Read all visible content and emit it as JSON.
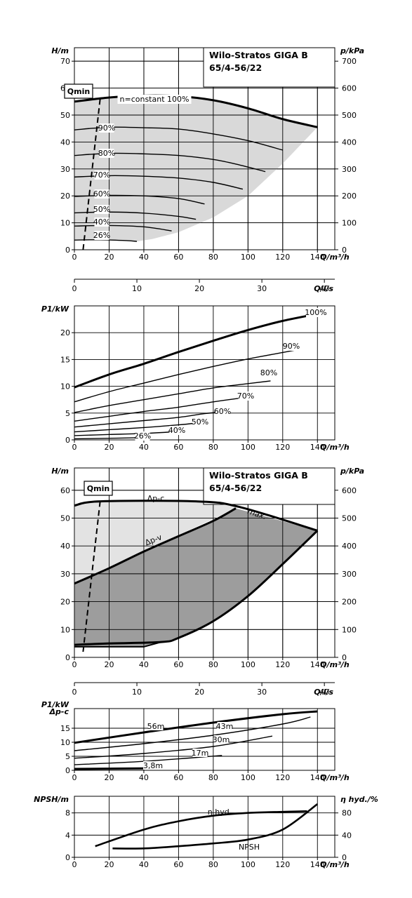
{
  "chart_data": [
    {
      "type": "line",
      "title": "Wilo-Stratos GIGA B 65/4-56/22",
      "ylabel": "H/m",
      "ylabel_right": "p/kPa",
      "xlabel": "Q/m³/h",
      "xlabel2": "Q/l/s",
      "x_ticks": [
        "0",
        "20",
        "40",
        "60",
        "80",
        "100",
        "120",
        "140"
      ],
      "y_ticks": [
        "0",
        "10",
        "20",
        "30",
        "40",
        "50",
        "60",
        "70"
      ],
      "y_right_ticks": [
        "0",
        "100",
        "200",
        "300",
        "400",
        "500",
        "600",
        "700"
      ],
      "x2_ticks": [
        "0",
        "10",
        "20",
        "30",
        "40"
      ],
      "xlim": [
        0,
        150
      ],
      "ylim": [
        0,
        75
      ],
      "qmin_label": "Qmin",
      "series": [
        {
          "name": "n=constant 100%",
          "points": [
            [
              0,
              55
            ],
            [
              20,
              56.5
            ],
            [
              40,
              57.2
            ],
            [
              60,
              57
            ],
            [
              80,
              55.5
            ],
            [
              100,
              52.5
            ],
            [
              120,
              48.5
            ],
            [
              140,
              45.5
            ]
          ]
        },
        {
          "name": "90%",
          "points": [
            [
              0,
              44.5
            ],
            [
              20,
              45.5
            ],
            [
              40,
              45.3
            ],
            [
              60,
              44.8
            ],
            [
              80,
              43
            ],
            [
              100,
              40.5
            ],
            [
              120,
              37
            ]
          ]
        },
        {
          "name": "80%",
          "points": [
            [
              0,
              35
            ],
            [
              20,
              35.8
            ],
            [
              40,
              35.6
            ],
            [
              60,
              35
            ],
            [
              80,
              33.5
            ],
            [
              95,
              31.5
            ],
            [
              110,
              29
            ]
          ]
        },
        {
          "name": "70%",
          "points": [
            [
              0,
              27
            ],
            [
              20,
              27.5
            ],
            [
              40,
              27.3
            ],
            [
              60,
              26.6
            ],
            [
              80,
              25
            ],
            [
              97,
              22.5
            ]
          ]
        },
        {
          "name": "60%",
          "points": [
            [
              0,
              19.8
            ],
            [
              20,
              20.2
            ],
            [
              40,
              20
            ],
            [
              60,
              19
            ],
            [
              75,
              17
            ]
          ]
        },
        {
          "name": "50%",
          "points": [
            [
              0,
              13.7
            ],
            [
              20,
              14
            ],
            [
              40,
              13.6
            ],
            [
              60,
              12.4
            ],
            [
              70,
              11.3
            ]
          ]
        },
        {
          "name": "40%",
          "points": [
            [
              0,
              8.8
            ],
            [
              20,
              9
            ],
            [
              40,
              8.5
            ],
            [
              56,
              7
            ]
          ]
        },
        {
          "name": "26%",
          "points": [
            [
              0,
              3.6
            ],
            [
              15,
              3.7
            ],
            [
              30,
              3.4
            ],
            [
              36,
              3.1
            ]
          ]
        }
      ],
      "qmin_line": [
        [
          5,
          0
        ],
        [
          15,
          57
        ]
      ],
      "fill_region": [
        [
          0,
          55
        ],
        [
          20,
          56.5
        ],
        [
          40,
          57.2
        ],
        [
          60,
          57
        ],
        [
          80,
          55.5
        ],
        [
          100,
          52.5
        ],
        [
          120,
          48.5
        ],
        [
          140,
          45.5
        ],
        [
          120,
          32
        ],
        [
          100,
          20
        ],
        [
          80,
          12
        ],
        [
          60,
          6.5
        ],
        [
          45,
          4
        ],
        [
          36,
          3.1
        ],
        [
          30,
          3.4
        ],
        [
          15,
          3.7
        ],
        [
          0,
          3.6
        ]
      ]
    },
    {
      "type": "line",
      "ylabel": "P1/kW",
      "xlabel": "Q/m³/h",
      "x_ticks": [
        "0",
        "20",
        "40",
        "60",
        "80",
        "100",
        "120",
        "140"
      ],
      "y_ticks": [
        "0",
        "5",
        "10",
        "15",
        "20"
      ],
      "xlim": [
        0,
        150
      ],
      "ylim": [
        0,
        25
      ],
      "series": [
        {
          "name": "100%",
          "points": [
            [
              0,
              9.8
            ],
            [
              20,
              12.2
            ],
            [
              40,
              14.2
            ],
            [
              60,
              16.4
            ],
            [
              80,
              18.5
            ],
            [
              100,
              20.5
            ],
            [
              120,
              22.2
            ],
            [
              140,
              23.5
            ]
          ]
        },
        {
          "name": "90%",
          "points": [
            [
              0,
              7.1
            ],
            [
              20,
              9
            ],
            [
              40,
              10.6
            ],
            [
              60,
              12.2
            ],
            [
              80,
              13.7
            ],
            [
              100,
              15.1
            ],
            [
              120,
              16.3
            ],
            [
              128,
              16.8
            ]
          ]
        },
        {
          "name": "80%",
          "points": [
            [
              0,
              5.1
            ],
            [
              20,
              6.4
            ],
            [
              40,
              7.5
            ],
            [
              60,
              8.6
            ],
            [
              80,
              9.7
            ],
            [
              100,
              10.5
            ],
            [
              113,
              11
            ]
          ]
        },
        {
          "name": "70%",
          "points": [
            [
              0,
              3.5
            ],
            [
              20,
              4.4
            ],
            [
              40,
              5.3
            ],
            [
              60,
              6.1
            ],
            [
              80,
              7.1
            ],
            [
              98,
              7.9
            ]
          ]
        },
        {
          "name": "60%",
          "points": [
            [
              0,
              2.4
            ],
            [
              20,
              3
            ],
            [
              40,
              3.6
            ],
            [
              60,
              4.2
            ],
            [
              75,
              4.9
            ],
            [
              85,
              5.2
            ]
          ]
        },
        {
          "name": "50%",
          "points": [
            [
              0,
              1.5
            ],
            [
              20,
              1.9
            ],
            [
              40,
              2.3
            ],
            [
              60,
              2.8
            ],
            [
              72,
              3.2
            ]
          ]
        },
        {
          "name": "40%",
          "points": [
            [
              0,
              0.8
            ],
            [
              20,
              1
            ],
            [
              40,
              1.2
            ],
            [
              57,
              1.5
            ]
          ]
        },
        {
          "name": "26%",
          "points": [
            [
              0,
              0.2
            ],
            [
              20,
              0.3
            ],
            [
              36,
              0.4
            ]
          ]
        }
      ]
    },
    {
      "type": "line",
      "title": "Wilo-Stratos GIGA B 65/4-56/22",
      "ylabel": "H/m",
      "ylabel_right": "p/kPa",
      "xlabel": "Q/m³/h",
      "xlabel2": "Q/l/s",
      "x_ticks": [
        "0",
        "20",
        "40",
        "60",
        "80",
        "100",
        "120",
        "140"
      ],
      "y_ticks": [
        "0",
        "10",
        "20",
        "30",
        "40",
        "50",
        "60"
      ],
      "y_right_ticks": [
        "0",
        "100",
        "200",
        "300",
        "400",
        "500",
        "600"
      ],
      "x2_ticks": [
        "0",
        "10",
        "20",
        "30",
        "40"
      ],
      "xlim": [
        0,
        150
      ],
      "ylim": [
        0,
        68
      ],
      "qmin_label": "Qmin",
      "labels": {
        "dpc": "Δp-c",
        "dpv": "Δp-v",
        "max": "max."
      },
      "dpc_line": [
        [
          0,
          54.5
        ],
        [
          15,
          56
        ],
        [
          70,
          56
        ],
        [
          95,
          54
        ],
        [
          140,
          45.5
        ]
      ],
      "dpv_line": [
        [
          0,
          26.5
        ],
        [
          20,
          32
        ],
        [
          40,
          38
        ],
        [
          60,
          43.5
        ],
        [
          80,
          49
        ],
        [
          93,
          53.5
        ]
      ],
      "max_curve": [
        [
          0,
          54.5
        ],
        [
          15,
          56
        ],
        [
          70,
          56
        ],
        [
          95,
          54
        ],
        [
          140,
          45.5
        ]
      ],
      "min_curve": [
        [
          0,
          4.5
        ],
        [
          20,
          5
        ],
        [
          50,
          5.5
        ],
        [
          60,
          7
        ],
        [
          80,
          13
        ],
        [
          100,
          22
        ],
        [
          120,
          33.5
        ],
        [
          140,
          45.5
        ]
      ],
      "min_curve2": [
        [
          0,
          3.8
        ],
        [
          40,
          3.8
        ],
        [
          50,
          5.5
        ]
      ],
      "qmin_line": [
        [
          5,
          2
        ],
        [
          15,
          57
        ]
      ],
      "light_region": [
        [
          0,
          54.5
        ],
        [
          15,
          56
        ],
        [
          70,
          56
        ],
        [
          95,
          54
        ],
        [
          0,
          26.5
        ]
      ],
      "dark_region": [
        [
          0,
          26.5
        ],
        [
          20,
          32
        ],
        [
          40,
          38
        ],
        [
          60,
          43.5
        ],
        [
          80,
          49
        ],
        [
          93,
          53.5
        ],
        [
          140,
          45.5
        ],
        [
          120,
          33.5
        ],
        [
          100,
          22
        ],
        [
          80,
          13
        ],
        [
          60,
          7
        ],
        [
          50,
          5.5
        ],
        [
          40,
          3.8
        ],
        [
          0,
          3.8
        ]
      ]
    },
    {
      "type": "line",
      "ylabel": "Δp-c",
      "ylabel2": "P1/kW",
      "xlabel": "Q/m³/h",
      "x_ticks": [
        "0",
        "20",
        "40",
        "60",
        "80",
        "100",
        "120",
        "140"
      ],
      "y_ticks": [
        "0",
        "5",
        "10",
        "15"
      ],
      "xlim": [
        0,
        150
      ],
      "ylim": [
        0,
        22
      ],
      "series": [
        {
          "name": "56m",
          "points": [
            [
              0,
              9.8
            ],
            [
              40,
              13.5
            ],
            [
              80,
              17
            ],
            [
              120,
              20
            ],
            [
              140,
              21
            ]
          ]
        },
        {
          "name": "43m",
          "points": [
            [
              0,
              7
            ],
            [
              40,
              9.5
            ],
            [
              80,
              12.5
            ],
            [
              120,
              16.5
            ],
            [
              136,
              19
            ]
          ]
        },
        {
          "name": "30m",
          "points": [
            [
              0,
              4.3
            ],
            [
              40,
              6
            ],
            [
              80,
              8.5
            ],
            [
              114,
              12.2
            ]
          ]
        },
        {
          "name": "17m",
          "points": [
            [
              0,
              2
            ],
            [
              40,
              3.2
            ],
            [
              85,
              5.3
            ]
          ]
        },
        {
          "name": "3,8m",
          "points": [
            [
              0,
              0.5
            ],
            [
              40,
              0.7
            ]
          ]
        }
      ]
    },
    {
      "type": "line",
      "ylabel": "NPSH/m",
      "ylabel_right": "η hyd./%",
      "xlabel": "Q/m³/h",
      "x_ticks": [
        "0",
        "20",
        "40",
        "60",
        "80",
        "100",
        "120",
        "140"
      ],
      "y_ticks": [
        "0",
        "4",
        "8"
      ],
      "y_right_ticks": [
        "0",
        "40",
        "80"
      ],
      "xlim": [
        0,
        150
      ],
      "ylim": [
        0,
        11
      ],
      "series": [
        {
          "name": "η hyd.",
          "points": [
            [
              12,
              2
            ],
            [
              40,
              5
            ],
            [
              60,
              6.5
            ],
            [
              80,
              7.5
            ],
            [
              100,
              8
            ],
            [
              120,
              8.2
            ],
            [
              134,
              8.3
            ]
          ]
        },
        {
          "name": "NPSH",
          "points": [
            [
              22,
              1.6
            ],
            [
              40,
              1.6
            ],
            [
              60,
              2
            ],
            [
              80,
              2.5
            ],
            [
              100,
              3.2
            ],
            [
              120,
              5
            ],
            [
              140,
              9.6
            ]
          ]
        }
      ]
    }
  ]
}
